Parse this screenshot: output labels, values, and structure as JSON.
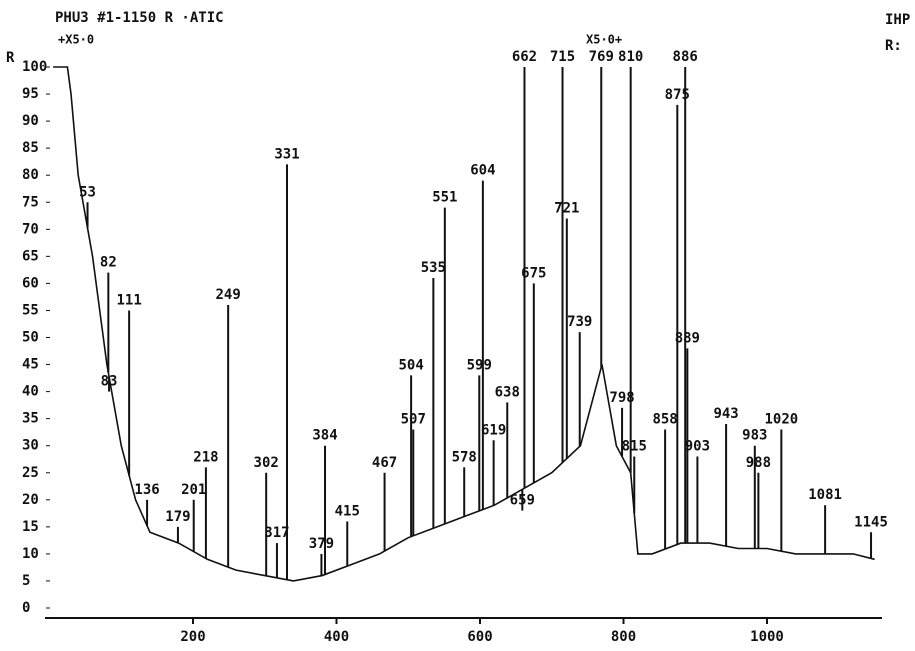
{
  "chart_data": {
    "type": "line",
    "title": "PHU3  #1-1150 R ·ATIC",
    "y_label": "R",
    "annotations": [
      "+X5·0",
      "X5·0+",
      "IHP",
      "R:"
    ],
    "color": "#111111",
    "xlim": [
      0,
      1160
    ],
    "xticks": [
      200,
      400,
      600,
      800,
      1000
    ],
    "ylim": [
      0,
      100
    ],
    "yticks": [
      0,
      5,
      10,
      15,
      20,
      25,
      30,
      35,
      40,
      45,
      50,
      55,
      60,
      65,
      70,
      75,
      80,
      85,
      90,
      95,
      100
    ],
    "x": [
      5,
      25,
      30,
      40,
      60,
      80,
      100,
      120,
      140,
      180,
      220,
      260,
      300,
      340,
      380,
      420,
      460,
      500,
      540,
      580,
      620,
      660,
      700,
      740,
      770,
      790,
      810,
      820,
      840,
      880,
      920,
      960,
      1000,
      1040,
      1080,
      1120,
      1150
    ],
    "values": [
      100,
      100,
      95,
      80,
      65,
      45,
      30,
      20,
      14,
      12,
      9,
      7,
      6,
      5,
      6,
      8,
      10,
      13,
      15,
      17,
      19,
      22,
      25,
      30,
      45,
      30,
      25,
      10,
      10,
      12,
      12,
      11,
      11,
      10,
      10,
      10,
      9
    ],
    "peaks": {
      "x": [
        53,
        82,
        83,
        111,
        136,
        179,
        201,
        218,
        249,
        302,
        317,
        331,
        379,
        384,
        415,
        467,
        504,
        507,
        535,
        551,
        578,
        599,
        604,
        619,
        638,
        659,
        662,
        675,
        715,
        721,
        739,
        769,
        798,
        810,
        815,
        858,
        875,
        886,
        889,
        903,
        943,
        983,
        988,
        1020,
        1081,
        1145
      ],
      "y": [
        75,
        62,
        40,
        55,
        20,
        15,
        20,
        26,
        56,
        25,
        12,
        82,
        10,
        30,
        16,
        25,
        43,
        33,
        61,
        74,
        26,
        43,
        79,
        31,
        38,
        18,
        100,
        60,
        100,
        72,
        51,
        100,
        37,
        100,
        28,
        33,
        93,
        100,
        48,
        28,
        34,
        30,
        25,
        33,
        19,
        14
      ]
    }
  }
}
